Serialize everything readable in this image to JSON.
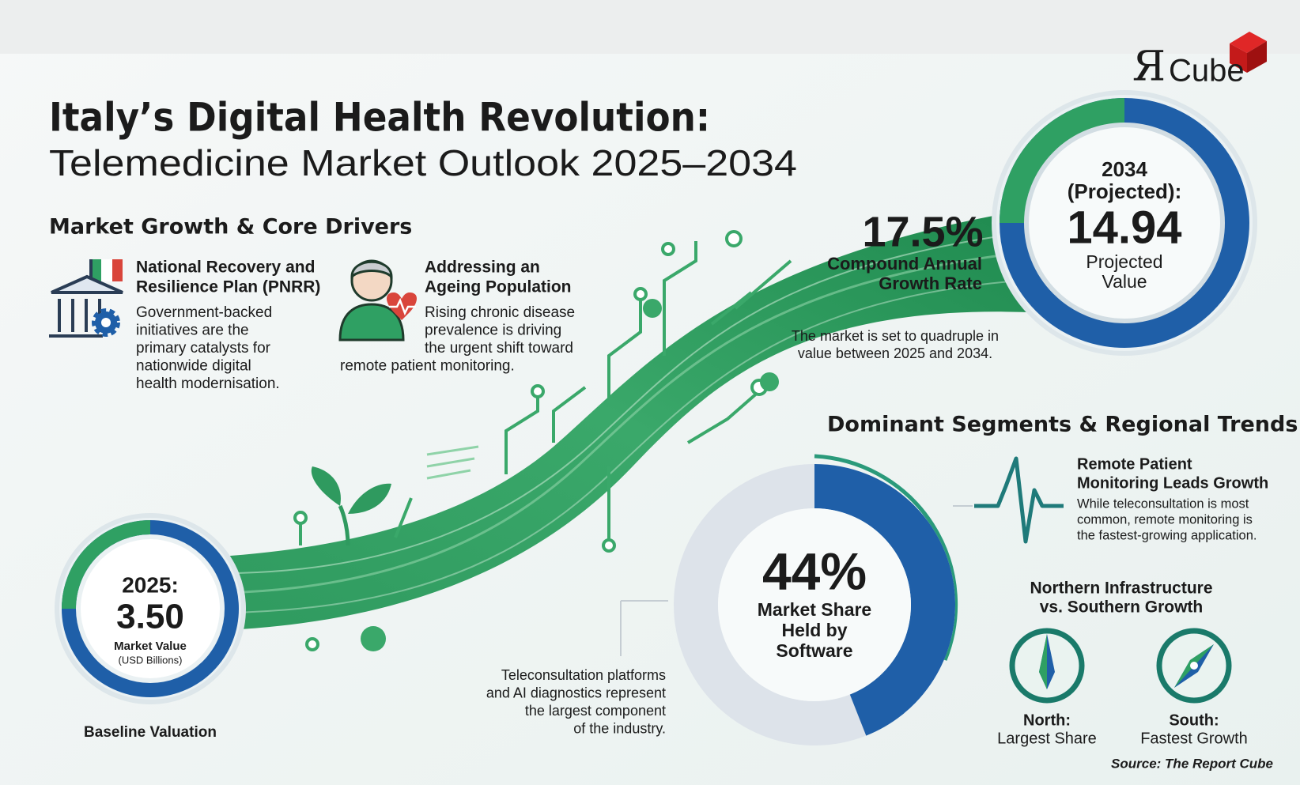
{
  "brand": {
    "mark": "Я",
    "name": "Cube"
  },
  "header": {
    "title": "Italy’s Digital Health Revolution:",
    "subtitle": "Telemedicine Market Outlook 2025–2034"
  },
  "drivers": {
    "heading": "Market Growth & Core Drivers",
    "items": [
      {
        "title": [
          "National Recovery and",
          "Resilience Plan (PNRR)"
        ],
        "text": [
          "Government-backed",
          "initiatives are the",
          "primary catalysts for",
          "nationwide digital",
          "health modernisation."
        ]
      },
      {
        "title": [
          "Addressing an",
          "Ageing Population"
        ],
        "text": [
          "Rising chronic disease",
          "prevalence is driving",
          "the urgent shift toward",
          "remote patient monitoring."
        ]
      }
    ]
  },
  "baseline": {
    "year": "2025:",
    "value": "3.50",
    "label": "Market Value",
    "unit": "(USD Billions)",
    "caption": "Baseline Valuation"
  },
  "growth": {
    "rate": "17.5%",
    "label": [
      "Compound Annual",
      "Growth Rate"
    ],
    "note": [
      "The market is set to quadruple in",
      "value between 2025 and 2034."
    ]
  },
  "projection": {
    "year": [
      "2034",
      "(Projected):"
    ],
    "value": "14.94",
    "label": [
      "Projected",
      "Value"
    ]
  },
  "segments": {
    "heading": "Dominant Segments & Regional Trends",
    "share": {
      "value": 44,
      "label": "44%",
      "text": [
        "Market Share",
        "Held by",
        "Software"
      ]
    },
    "share_note": [
      "Teleconsultation platforms",
      "and AI diagnostics represent",
      "the largest component",
      "of the industry."
    ],
    "rpm": {
      "title": [
        "Remote Patient",
        "Monitoring Leads Growth"
      ],
      "text": [
        "While teleconsultation is most",
        "common, remote monitoring is",
        "the fastest-growing application."
      ]
    },
    "regional": {
      "heading": [
        "Northern Infrastructure",
        "vs. Southern Growth"
      ],
      "north": {
        "name": "North:",
        "text": "Largest Share"
      },
      "south": {
        "name": "South:",
        "text": "Fastest Growth"
      }
    }
  },
  "source": "Source: The Report Cube"
}
